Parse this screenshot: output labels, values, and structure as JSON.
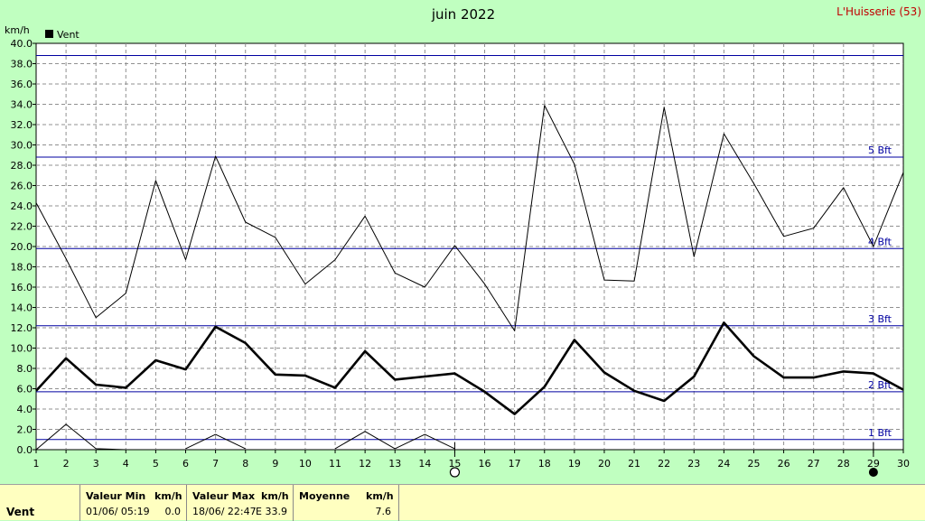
{
  "header": {
    "title": "juin 2022",
    "station": "L'Huisserie (53)",
    "unit": "km/h",
    "legend_label": "Vent"
  },
  "colors": {
    "background": "#c0ffc0",
    "plot": "#ffffff",
    "grid": "#909090",
    "beaufort": "#0000a0",
    "footer": "#ffffc0",
    "station": "#c00000"
  },
  "chart_data": {
    "type": "line",
    "title": "juin 2022",
    "ylabel": "km/h",
    "x": [
      1,
      2,
      3,
      4,
      5,
      6,
      7,
      8,
      9,
      10,
      11,
      12,
      13,
      14,
      15,
      16,
      17,
      18,
      19,
      20,
      21,
      22,
      23,
      24,
      25,
      26,
      27,
      28,
      29,
      30
    ],
    "xlim": [
      1,
      30
    ],
    "ylim": [
      0,
      40
    ],
    "y_ticks": [
      "0.0",
      "2.0",
      "4.0",
      "6.0",
      "8.0",
      "10.0",
      "12.0",
      "14.0",
      "16.0",
      "18.0",
      "20.0",
      "22.0",
      "24.0",
      "26.0",
      "28.0",
      "30.0",
      "32.0",
      "34.0",
      "36.0",
      "38.0",
      "40.0"
    ],
    "grid": true,
    "legend": "top-left",
    "series": [
      {
        "name": "Vent",
        "style": "bold",
        "values": [
          5.8,
          9.0,
          6.4,
          6.1,
          8.8,
          7.9,
          12.1,
          10.5,
          7.4,
          7.3,
          6.1,
          9.7,
          6.9,
          7.2,
          7.5,
          5.7,
          3.5,
          6.2,
          10.8,
          7.6,
          5.8,
          4.8,
          7.2,
          12.5,
          9.2,
          7.1,
          7.1,
          7.7,
          7.5,
          5.9
        ]
      },
      {
        "style": "thin",
        "values": [
          24.3,
          18.8,
          13.0,
          15.4,
          26.5,
          18.7,
          28.9,
          22.4,
          20.9,
          16.3,
          18.7,
          23.0,
          17.4,
          16.0,
          20.1,
          16.3,
          11.7,
          33.9,
          28.1,
          16.7,
          16.6,
          33.7,
          19.0,
          31.1,
          26.2,
          21.0,
          21.8,
          25.8,
          20.0,
          27.3
        ]
      },
      {
        "style": "thin",
        "values": [
          0.0,
          2.5,
          0.1,
          0.0,
          null,
          0.1,
          1.5,
          0.1,
          null,
          null,
          0.1,
          1.8,
          0.1,
          1.5,
          0.1,
          null,
          null,
          null,
          null,
          null,
          null,
          null,
          null,
          null,
          null,
          null,
          null,
          null,
          null,
          null
        ]
      }
    ],
    "beaufort": [
      {
        "label": "1 Bft",
        "value": 1.0
      },
      {
        "label": "2 Bft",
        "value": 5.7
      },
      {
        "label": "3 Bft",
        "value": 12.2
      },
      {
        "label": "4 Bft",
        "value": 19.8
      },
      {
        "label": "5 Bft",
        "value": 28.8
      },
      {
        "label": "",
        "value": 38.8
      }
    ],
    "moon_phases": [
      {
        "day": 15,
        "phase": "new"
      },
      {
        "day": 29,
        "phase": "full"
      }
    ]
  },
  "footer": {
    "label": "Vent",
    "min": {
      "title": "Valeur Min",
      "unit": "km/h",
      "when": "01/06/  05:19",
      "value": "0.0"
    },
    "max": {
      "title": "Valeur Max",
      "unit": "km/h",
      "when": "18/06/  22:47",
      "value": "E  33.9"
    },
    "avg": {
      "title": "Moyenne",
      "unit": "km/h",
      "value": "7.6"
    }
  }
}
